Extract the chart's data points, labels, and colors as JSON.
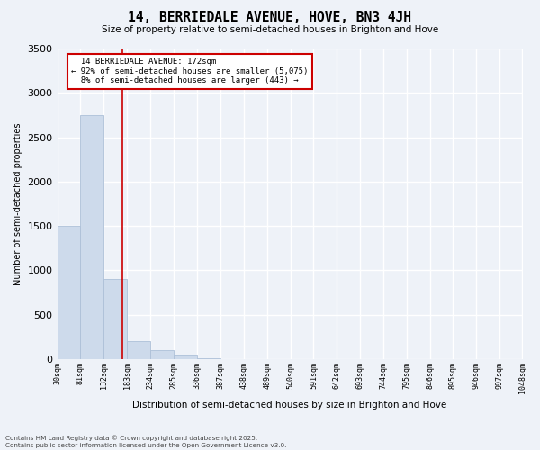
{
  "title": "14, BERRIEDALE AVENUE, HOVE, BN3 4JH",
  "subtitle": "Size of property relative to semi-detached houses in Brighton and Hove",
  "xlabel": "Distribution of semi-detached houses by size in Brighton and Hove",
  "ylabel": "Number of semi-detached properties",
  "footer_line1": "Contains HM Land Registry data © Crown copyright and database right 2025.",
  "footer_line2": "Contains public sector information licensed under the Open Government Licence v3.0.",
  "annotation_line1": "  14 BERRIEDALE AVENUE: 172sqm",
  "annotation_line2": "← 92% of semi-detached houses are smaller (5,075)",
  "annotation_line3": "  8% of semi-detached houses are larger (443) →",
  "property_size": 172,
  "bar_color": "#cddaeb",
  "bar_edge_color": "#adc0d8",
  "vline_color": "#cc0000",
  "annotation_box_edge": "#cc0000",
  "background_color": "#eef2f8",
  "ylim": [
    0,
    3500
  ],
  "bin_edges": [
    30,
    81,
    132,
    183,
    234,
    285,
    336,
    387,
    438,
    489,
    540,
    591,
    642,
    693,
    744,
    795,
    846,
    895,
    946,
    997,
    1048
  ],
  "bar_heights": [
    1500,
    2750,
    900,
    200,
    100,
    50,
    10,
    2,
    1,
    0,
    0,
    0,
    0,
    0,
    0,
    0,
    0,
    0,
    0,
    0
  ],
  "yticks": [
    0,
    500,
    1000,
    1500,
    2000,
    2500,
    3000,
    3500
  ]
}
